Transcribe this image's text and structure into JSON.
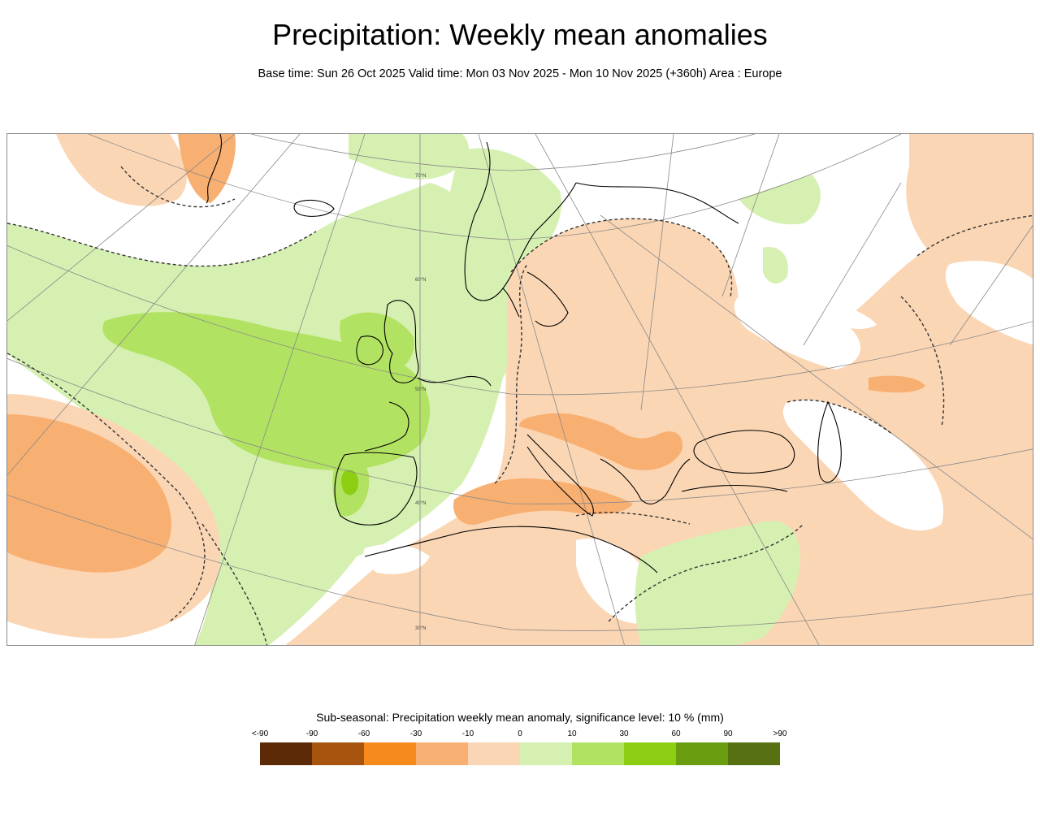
{
  "title": "Precipitation: Weekly mean anomalies",
  "subtitle": "Base time: Sun 26 Oct 2025 Valid time: Mon 03 Nov 2025 - Mon 10 Nov 2025 (+360h) Area : Europe",
  "map": {
    "area": "Europe",
    "lat_labels": [
      "70°N",
      "60°N",
      "50°N",
      "40°N",
      "30°N"
    ],
    "colors": {
      "land_outline": "#000000",
      "graticule": "#888888",
      "significance_contour": "#333333"
    }
  },
  "legend": {
    "title": "Sub-seasonal: Precipitation weekly mean anomaly, significance level: 10 % (mm)",
    "tick_labels": [
      "<-90",
      "-90",
      "-60",
      "-30",
      "-10",
      "0",
      "10",
      "30",
      "60",
      "90",
      ">90"
    ],
    "colors": [
      "#5c2a06",
      "#a6540e",
      "#f78a1c",
      "#f8b072",
      "#fbd6b4",
      "#d6f0b2",
      "#b2e262",
      "#8cce12",
      "#6a9c10",
      "#567012"
    ]
  }
}
